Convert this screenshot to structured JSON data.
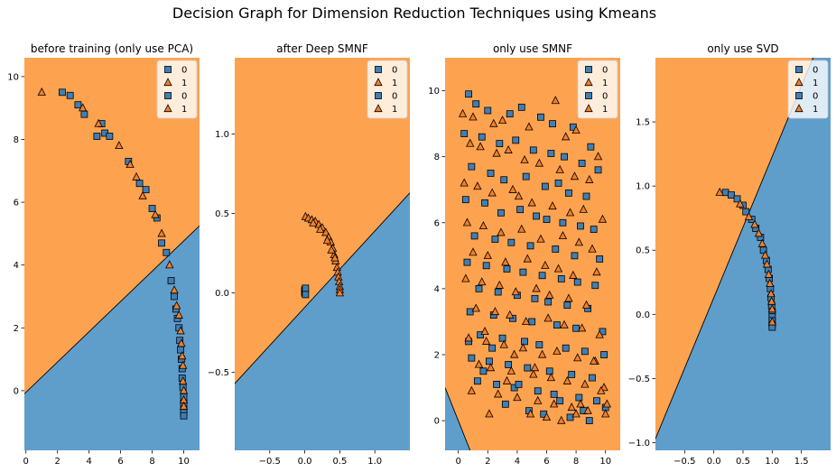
{
  "figure": {
    "title": "Decision Graph for Dimension Reduction Techniques using Kmeans"
  },
  "colors": {
    "class0_region": "#5f9ecb",
    "class1_region": "#fda350",
    "class0_marker": "#3f7fb5",
    "class1_marker": "#f07f2c",
    "edge": "#000000"
  },
  "chart_data": [
    {
      "type": "scatter",
      "title": "before training (only use PCA)",
      "xlim": [
        -0.1,
        11.0
      ],
      "ylim": [
        -1.9,
        10.6
      ],
      "xticks": [
        0,
        2,
        4,
        6,
        8,
        10
      ],
      "yticks": [
        0,
        2,
        4,
        6,
        8,
        10
      ],
      "xticklabels": [
        "0",
        "2",
        "4",
        "6",
        "8",
        "10"
      ],
      "yticklabels": [
        "0",
        "2",
        "4",
        "6",
        "8",
        "10"
      ],
      "legend": {
        "position": "top-right",
        "entries": [
          {
            "label": "0",
            "marker": "square"
          },
          {
            "label": "1",
            "marker": "triangle"
          },
          {
            "label": "0",
            "marker": "square"
          },
          {
            "label": "1",
            "marker": "triangle"
          }
        ]
      },
      "decision_boundary": {
        "p1": [
          -0.1,
          -0.1
        ],
        "p2": [
          11.0,
          5.25
        ],
        "above_class": 1,
        "below_class": 0
      },
      "series": [
        {
          "name": "0",
          "marker": "square",
          "class": 0,
          "x": [
            2.3,
            2.8,
            3.3,
            3.7,
            4.5,
            4.8,
            5.0,
            5.3,
            6.5,
            7.2,
            7.6,
            8.0,
            8.3,
            8.6,
            8.9,
            9.2,
            9.4,
            9.5,
            9.6,
            9.7,
            9.75,
            9.8,
            9.85,
            9.9,
            9.9,
            9.95,
            10.0,
            10.0,
            10.0,
            10.0,
            10.0
          ],
          "y": [
            9.5,
            9.4,
            9.1,
            8.8,
            8.1,
            8.5,
            8.2,
            8.1,
            7.3,
            6.6,
            6.4,
            5.8,
            5.5,
            4.7,
            4.4,
            3.5,
            3.0,
            2.6,
            2.3,
            2.0,
            1.6,
            1.3,
            1.0,
            0.7,
            0.4,
            0.1,
            -0.2,
            -0.4,
            -0.6,
            -0.7,
            -0.8
          ]
        },
        {
          "name": "1",
          "marker": "triangle",
          "class": 1,
          "x": [
            1.0,
            3.6,
            4.6,
            5.9,
            6.6,
            7.0,
            7.4,
            8.2,
            8.6,
            9.1,
            9.4,
            9.55,
            9.7,
            9.8,
            9.85,
            9.9,
            9.95,
            9.95,
            10.0,
            10.0,
            10.0
          ],
          "y": [
            9.5,
            9.0,
            8.5,
            7.8,
            7.2,
            6.8,
            6.2,
            5.6,
            5.0,
            4.0,
            3.2,
            2.7,
            2.4,
            1.9,
            1.5,
            1.1,
            0.8,
            0.3,
            0.0,
            -0.3,
            -0.5
          ]
        }
      ]
    },
    {
      "type": "scatter",
      "title": "after Deep SMNF",
      "xlim": [
        -1.0,
        1.5
      ],
      "ylim": [
        -0.99,
        1.48
      ],
      "xticks": [
        -0.5,
        0.0,
        0.5,
        1.0
      ],
      "yticks": [
        -0.5,
        0.0,
        0.5,
        1.0
      ],
      "xticklabels": [
        "−0.5",
        "0.0",
        "0.5",
        "1.0"
      ],
      "yticklabels": [
        "−0.5",
        "0.0",
        "0.5",
        "1.0"
      ],
      "legend": {
        "position": "top-right",
        "entries": [
          {
            "label": "0",
            "marker": "square"
          },
          {
            "label": "1",
            "marker": "triangle"
          },
          {
            "label": "0",
            "marker": "square"
          },
          {
            "label": "1",
            "marker": "triangle"
          }
        ]
      },
      "decision_boundary": {
        "p1": [
          -1.0,
          -0.57
        ],
        "p2": [
          1.5,
          0.63
        ],
        "above_class": 1,
        "below_class": 0
      },
      "series": [
        {
          "name": "0",
          "marker": "square",
          "class": 0,
          "x": [
            0.0,
            0.0,
            0.0,
            0.01,
            0.01
          ],
          "y": [
            0.0,
            0.01,
            0.02,
            0.03,
            -0.01
          ]
        },
        {
          "name": "1",
          "marker": "triangle",
          "class": 1,
          "x": [
            0.01,
            0.05,
            0.1,
            0.15,
            0.2,
            0.25,
            0.3,
            0.34,
            0.37,
            0.4,
            0.42,
            0.44,
            0.46,
            0.47,
            0.48,
            0.49,
            0.5,
            0.5,
            0.5,
            0.12,
            0.22,
            0.32,
            0.38,
            0.43
          ],
          "y": [
            0.48,
            0.47,
            0.46,
            0.45,
            0.43,
            0.41,
            0.38,
            0.35,
            0.32,
            0.28,
            0.24,
            0.2,
            0.16,
            0.13,
            0.1,
            0.07,
            0.04,
            0.02,
            0.0,
            0.44,
            0.4,
            0.33,
            0.27,
            0.22
          ]
        }
      ]
    },
    {
      "type": "scatter",
      "title": "only use SMNF",
      "xlim": [
        -0.9,
        11.0
      ],
      "ylim": [
        -0.9,
        11.0
      ],
      "xticks": [
        0,
        2,
        4,
        6,
        8,
        10
      ],
      "yticks": [
        0,
        2,
        4,
        6,
        8,
        10
      ],
      "xticklabels": [
        "0",
        "2",
        "4",
        "6",
        "8",
        "10"
      ],
      "yticklabels": [
        "0",
        "2",
        "4",
        "6",
        "8",
        "10"
      ],
      "legend": {
        "position": "top-right",
        "entries": [
          {
            "label": "0",
            "marker": "square"
          },
          {
            "label": "1",
            "marker": "triangle"
          },
          {
            "label": "0",
            "marker": "square"
          },
          {
            "label": "1",
            "marker": "triangle"
          }
        ]
      },
      "decision_boundary": {
        "p1": [
          -0.9,
          1.0
        ],
        "p2": [
          0.8,
          -0.9
        ],
        "above_class": 1,
        "below_class": 0
      },
      "series": [
        {
          "name": "0",
          "marker": "square",
          "class": 0,
          "x": [
            0.7,
            1.2,
            2.0,
            3.5,
            4.3,
            5.6,
            6.4,
            7.8,
            9.0,
            0.4,
            1.6,
            2.8,
            3.9,
            5.1,
            6.3,
            7.2,
            8.4,
            9.5,
            0.9,
            2.2,
            3.1,
            4.6,
            5.9,
            6.8,
            7.5,
            8.7,
            0.5,
            1.8,
            2.9,
            4.2,
            5.3,
            6.0,
            7.1,
            8.3,
            9.2,
            1.1,
            2.5,
            3.6,
            4.9,
            6.6,
            7.9,
            9.6,
            0.6,
            1.9,
            3.3,
            4.4,
            5.7,
            7.0,
            8.1,
            9.3,
            1.4,
            2.7,
            4.0,
            5.2,
            6.1,
            7.4,
            8.8,
            0.8,
            2.4,
            3.7,
            5.0,
            6.7,
            8.0,
            9.8,
            1.5,
            3.0,
            4.5,
            5.5,
            7.3,
            8.6,
            9.9,
            0.9,
            2.1,
            3.4,
            4.7,
            6.2,
            7.7,
            9.1,
            1.3,
            2.6,
            3.8,
            5.4,
            6.5,
            8.2,
            9.4,
            0.7,
            1.7,
            3.2,
            4.8,
            5.8,
            7.6,
            8.9,
            10.0,
            2.3,
            4.1,
            6.9,
            8.5
          ],
          "y": [
            9.9,
            9.6,
            9.4,
            9.3,
            9.5,
            9.2,
            9.0,
            8.9,
            8.3,
            8.7,
            8.6,
            8.4,
            8.5,
            8.2,
            8.1,
            8.0,
            7.8,
            7.6,
            7.7,
            7.5,
            7.3,
            7.4,
            7.1,
            7.2,
            6.9,
            6.8,
            6.7,
            6.6,
            6.3,
            6.4,
            6.2,
            6.1,
            6.0,
            5.9,
            5.8,
            5.6,
            5.5,
            5.4,
            5.3,
            5.2,
            5.0,
            4.9,
            4.8,
            4.7,
            4.6,
            4.5,
            4.4,
            4.3,
            4.2,
            4.1,
            4.0,
            3.9,
            3.8,
            3.7,
            3.6,
            3.5,
            3.4,
            3.3,
            3.2,
            3.1,
            3.0,
            2.9,
            2.8,
            2.7,
            2.6,
            2.5,
            2.4,
            2.3,
            2.2,
            2.1,
            2.0,
            1.9,
            1.8,
            1.7,
            1.6,
            1.5,
            1.4,
            1.3,
            1.2,
            1.1,
            1.0,
            0.9,
            0.8,
            0.7,
            0.6,
            2.4,
            1.5,
            0.5,
            0.3,
            0.2,
            0.1,
            0.0,
            0.4,
            2.2,
            1.1,
            0.6,
            0.3
          ]
        },
        {
          "name": "1",
          "marker": "triangle",
          "class": 1,
          "x": [
            0.3,
            1.0,
            2.4,
            3.0,
            4.8,
            6.6,
            7.3,
            8.0,
            9.5,
            0.8,
            1.5,
            2.6,
            3.4,
            4.5,
            5.5,
            6.9,
            7.9,
            8.9,
            0.4,
            1.3,
            2.3,
            3.7,
            4.1,
            5.0,
            6.4,
            7.6,
            8.5,
            9.8,
            0.6,
            1.7,
            2.9,
            4.3,
            5.6,
            7.1,
            8.2,
            9.1,
            1.0,
            2.0,
            3.2,
            4.7,
            5.9,
            6.8,
            7.8,
            9.4,
            0.5,
            1.6,
            2.8,
            3.9,
            5.3,
            6.2,
            7.5,
            8.7,
            1.2,
            2.5,
            3.5,
            4.6,
            6.1,
            7.2,
            8.4,
            9.6,
            0.7,
            1.9,
            3.1,
            4.4,
            5.7,
            6.7,
            8.1,
            9.3,
            1.4,
            2.2,
            3.6,
            5.1,
            6.3,
            7.4,
            8.6,
            9.9,
            0.9,
            2.7,
            4.0,
            5.4,
            6.5,
            7.7,
            8.8,
            10.0,
            1.8,
            3.3,
            4.9,
            6.0,
            7.0,
            8.3,
            9.2,
            9.7,
            2.1,
            3.8,
            5.2,
            8.0,
            10.1
          ],
          "y": [
            9.3,
            9.2,
            9.0,
            9.1,
            8.9,
            9.7,
            8.6,
            8.8,
            8.0,
            8.4,
            8.3,
            8.1,
            8.2,
            7.9,
            7.8,
            7.6,
            7.4,
            7.3,
            7.2,
            7.1,
            6.9,
            7.0,
            6.8,
            6.6,
            6.5,
            6.3,
            6.4,
            6.1,
            6.0,
            5.9,
            5.7,
            5.8,
            5.5,
            5.6,
            5.4,
            5.2,
            5.1,
            5.0,
            4.8,
            4.9,
            4.7,
            4.6,
            4.4,
            4.5,
            4.3,
            4.2,
            4.1,
            3.9,
            4.0,
            3.8,
            3.7,
            3.5,
            3.4,
            3.3,
            3.2,
            3.0,
            3.1,
            2.9,
            2.8,
            2.6,
            2.5,
            2.4,
            2.3,
            2.2,
            2.0,
            2.1,
            1.9,
            1.8,
            1.7,
            1.6,
            1.5,
            1.4,
            1.3,
            1.2,
            1.1,
            1.0,
            0.9,
            0.8,
            0.7,
            0.6,
            0.5,
            0.4,
            0.3,
            0.2,
            2.7,
            1.2,
            0.2,
            0.1,
            0.0,
            0.5,
            1.8,
            0.9,
            0.2,
            2.0,
            1.6,
            0.2,
            0.5
          ]
        }
      ]
    },
    {
      "type": "scatter",
      "title": "only use SVD",
      "xlim": [
        -1.0,
        2.0
      ],
      "ylim": [
        -1.06,
        2.0
      ],
      "xticks": [
        -0.5,
        0.0,
        0.5,
        1.0,
        1.5
      ],
      "yticks": [
        -1.0,
        -0.5,
        0.0,
        0.5,
        1.0,
        1.5
      ],
      "xticklabels": [
        "−0.5",
        "0.0",
        "0.5",
        "1.0",
        "1.5"
      ],
      "yticklabels": [
        "−1.0",
        "−0.5",
        "0.0",
        "0.5",
        "1.0",
        "1.5"
      ],
      "legend": {
        "position": "top-right",
        "entries": [
          {
            "label": "0",
            "marker": "square"
          },
          {
            "label": "1",
            "marker": "triangle"
          },
          {
            "label": "0",
            "marker": "square"
          },
          {
            "label": "1",
            "marker": "triangle"
          }
        ]
      },
      "decision_boundary": {
        "p1": [
          -1.0,
          -0.97
        ],
        "p2": [
          1.7,
          2.0
        ],
        "above_class": 1,
        "below_class": 0
      },
      "series": [
        {
          "name": "0",
          "marker": "square",
          "class": 0,
          "x": [
            0.2,
            0.3,
            0.4,
            0.5,
            0.55,
            0.65,
            0.72,
            0.8,
            0.85,
            0.9,
            0.93,
            0.95,
            0.97,
            0.98,
            0.99,
            1.0,
            1.0,
            1.0,
            1.0,
            1.0
          ],
          "y": [
            0.95,
            0.93,
            0.9,
            0.85,
            0.8,
            0.74,
            0.67,
            0.6,
            0.5,
            0.42,
            0.35,
            0.28,
            0.2,
            0.13,
            0.07,
            0.02,
            -0.02,
            -0.05,
            -0.08,
            -0.1
          ]
        },
        {
          "name": "1",
          "marker": "triangle",
          "class": 1,
          "x": [
            0.1,
            0.45,
            0.6,
            0.7,
            0.77,
            0.83,
            0.88,
            0.91,
            0.94,
            0.96,
            0.98,
            0.99,
            1.0,
            1.0
          ],
          "y": [
            0.95,
            0.86,
            0.76,
            0.7,
            0.63,
            0.55,
            0.46,
            0.39,
            0.31,
            0.24,
            0.16,
            0.1,
            0.04,
            -0.06
          ]
        }
      ]
    }
  ]
}
